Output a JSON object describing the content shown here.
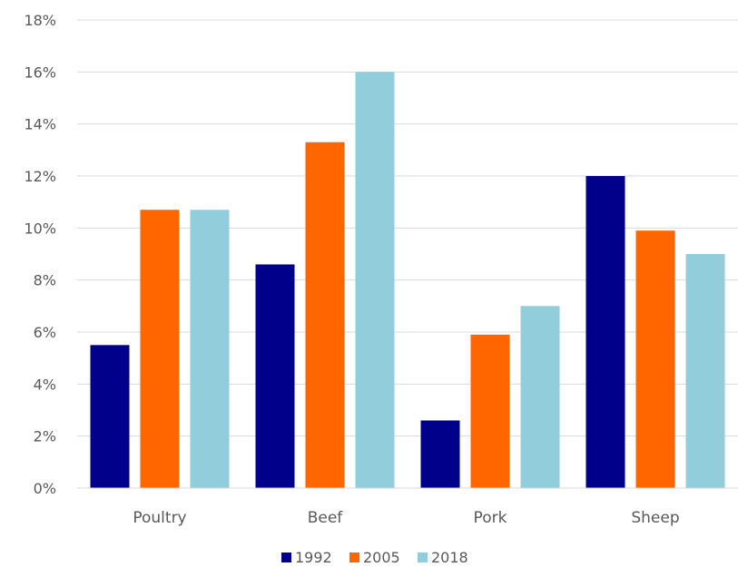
{
  "chart_data": {
    "type": "bar",
    "categories": [
      "Poultry",
      "Beef",
      "Pork",
      "Sheep"
    ],
    "series": [
      {
        "name": "1992",
        "color": "#00008B",
        "values": [
          5.5,
          8.6,
          2.6,
          12.0
        ]
      },
      {
        "name": "2005",
        "color": "#FF6600",
        "values": [
          10.7,
          13.3,
          5.9,
          9.9
        ]
      },
      {
        "name": "2018",
        "color": "#92CDDC",
        "values": [
          10.7,
          16.0,
          7.0,
          9.0
        ]
      }
    ],
    "y_ticks": [
      "0%",
      "2%",
      "4%",
      "6%",
      "8%",
      "10%",
      "12%",
      "14%",
      "16%",
      "18%"
    ],
    "ylim": [
      0,
      18
    ],
    "y_unit": "%",
    "grid": true,
    "legend_position": "bottom"
  }
}
